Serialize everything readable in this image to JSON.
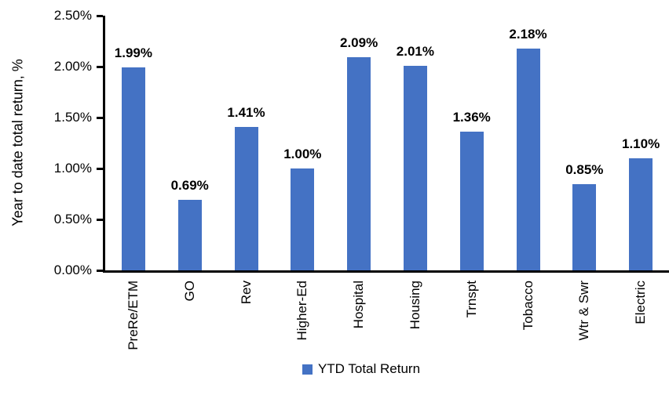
{
  "chart_data": {
    "type": "bar",
    "title": "",
    "xlabel": "",
    "ylabel": "Year to date total return, %",
    "categories": [
      "PreRe/ETM",
      "GO",
      "Rev",
      "Higher-Ed",
      "Hospital",
      "Housing",
      "Trnspt",
      "Tobacco",
      "Wtr & Swr",
      "Electric"
    ],
    "series": [
      {
        "name": "YTD Total Return",
        "values": [
          1.99,
          0.69,
          1.41,
          1.0,
          2.09,
          2.01,
          1.36,
          2.18,
          0.85,
          1.1
        ]
      }
    ],
    "data_labels": [
      "1.99%",
      "0.69%",
      "1.41%",
      "1.00%",
      "2.09%",
      "2.01%",
      "1.36%",
      "2.18%",
      "0.85%",
      "1.10%"
    ],
    "y_ticks": [
      "0.00%",
      "0.50%",
      "1.00%",
      "1.50%",
      "2.00%",
      "2.50%"
    ],
    "ylim": [
      0,
      2.5
    ],
    "grid": false,
    "bar_color": "#4472C4",
    "axis_color": "#000000",
    "legend": {
      "label": "YTD Total Return",
      "position": "bottom"
    }
  }
}
